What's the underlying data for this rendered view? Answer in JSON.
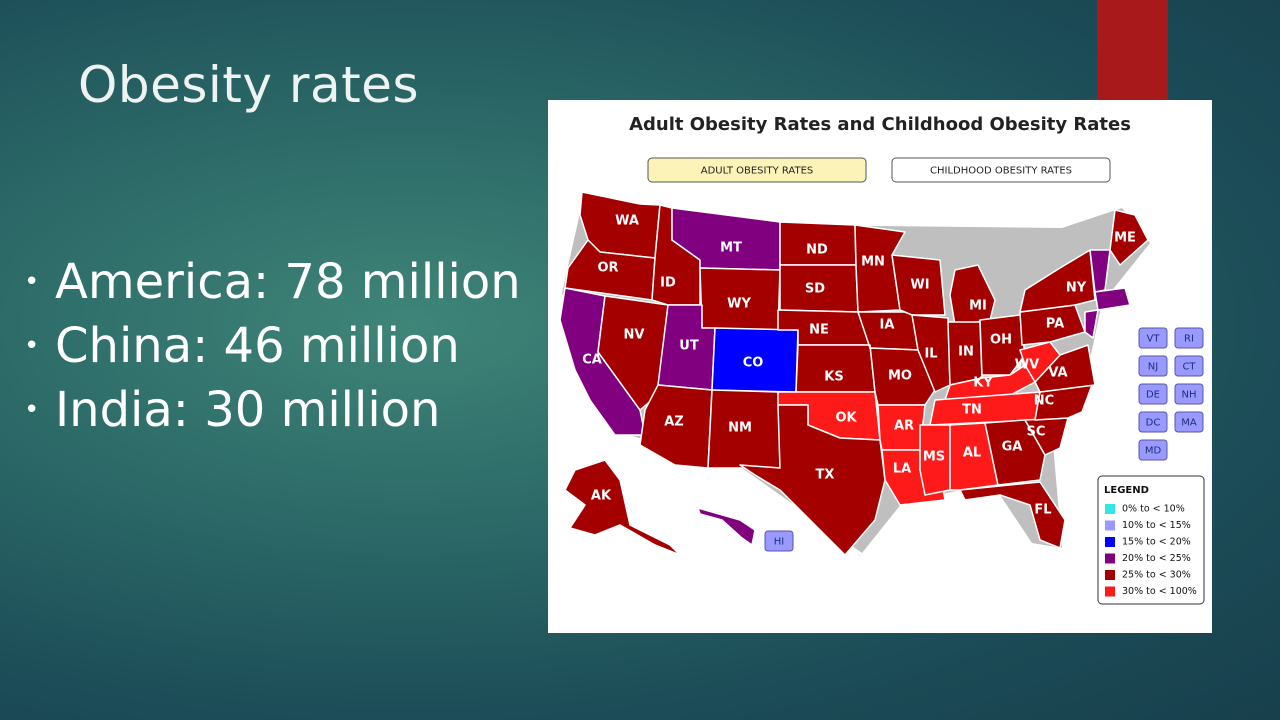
{
  "slide": {
    "title": "Obesity rates",
    "bullets": [
      {
        "text": "America: 78 million"
      },
      {
        "text": "China: 46 million"
      },
      {
        "text": "India: 30 million"
      }
    ],
    "accent_color": "#a8191b"
  },
  "map": {
    "title": "Adult Obesity Rates and Childhood Obesity Rates",
    "tabs": [
      {
        "label": "ADULT OBESITY RATES",
        "active": true
      },
      {
        "label": "CHILDHOOD OBESITY RATES",
        "active": false
      }
    ],
    "legend": {
      "title": "LEGEND",
      "items": [
        {
          "label": "0% to < 10%",
          "color": "#33e6e6"
        },
        {
          "label": "10% to < 15%",
          "color": "#9999ff"
        },
        {
          "label": "15% to < 20%",
          "color": "#0000ff"
        },
        {
          "label": "20% to < 25%",
          "color": "#800080"
        },
        {
          "label": "25% to < 30%",
          "color": "#a50000"
        },
        {
          "label": "30% to < 100%",
          "color": "#ff1a1a"
        }
      ]
    },
    "states": [
      {
        "abbr": "WA",
        "category": "25% to < 30%"
      },
      {
        "abbr": "OR",
        "category": "25% to < 30%"
      },
      {
        "abbr": "CA",
        "category": "20% to < 25%"
      },
      {
        "abbr": "NV",
        "category": "25% to < 30%"
      },
      {
        "abbr": "ID",
        "category": "25% to < 30%"
      },
      {
        "abbr": "MT",
        "category": "20% to < 25%"
      },
      {
        "abbr": "WY",
        "category": "25% to < 30%"
      },
      {
        "abbr": "UT",
        "category": "20% to < 25%"
      },
      {
        "abbr": "CO",
        "category": "15% to < 20%"
      },
      {
        "abbr": "AZ",
        "category": "25% to < 30%"
      },
      {
        "abbr": "NM",
        "category": "25% to < 30%"
      },
      {
        "abbr": "ND",
        "category": "25% to < 30%"
      },
      {
        "abbr": "SD",
        "category": "25% to < 30%"
      },
      {
        "abbr": "NE",
        "category": "25% to < 30%"
      },
      {
        "abbr": "KS",
        "category": "25% to < 30%"
      },
      {
        "abbr": "OK",
        "category": "30% to < 100%"
      },
      {
        "abbr": "TX",
        "category": "25% to < 30%"
      },
      {
        "abbr": "MN",
        "category": "25% to < 30%"
      },
      {
        "abbr": "IA",
        "category": "25% to < 30%"
      },
      {
        "abbr": "MO",
        "category": "25% to < 30%"
      },
      {
        "abbr": "AR",
        "category": "30% to < 100%"
      },
      {
        "abbr": "LA",
        "category": "30% to < 100%"
      },
      {
        "abbr": "WI",
        "category": "25% to < 30%"
      },
      {
        "abbr": "IL",
        "category": "25% to < 30%"
      },
      {
        "abbr": "MI",
        "category": "25% to < 30%"
      },
      {
        "abbr": "IN",
        "category": "25% to < 30%"
      },
      {
        "abbr": "OH",
        "category": "25% to < 30%"
      },
      {
        "abbr": "KY",
        "category": "30% to < 100%"
      },
      {
        "abbr": "TN",
        "category": "30% to < 100%"
      },
      {
        "abbr": "MS",
        "category": "30% to < 100%"
      },
      {
        "abbr": "AL",
        "category": "30% to < 100%"
      },
      {
        "abbr": "GA",
        "category": "25% to < 30%"
      },
      {
        "abbr": "FL",
        "category": "25% to < 30%"
      },
      {
        "abbr": "SC",
        "category": "25% to < 30%"
      },
      {
        "abbr": "NC",
        "category": "25% to < 30%"
      },
      {
        "abbr": "VA",
        "category": "25% to < 30%"
      },
      {
        "abbr": "WV",
        "category": "30% to < 100%"
      },
      {
        "abbr": "PA",
        "category": "25% to < 30%"
      },
      {
        "abbr": "NY",
        "category": "25% to < 30%"
      },
      {
        "abbr": "ME",
        "category": "25% to < 30%"
      },
      {
        "abbr": "AK",
        "category": "25% to < 30%"
      },
      {
        "abbr": "HI",
        "category": "20% to < 25%"
      }
    ],
    "small_state_buttons": [
      {
        "label": "VT"
      },
      {
        "label": "RI"
      },
      {
        "label": "NJ"
      },
      {
        "label": "CT"
      },
      {
        "label": "DE"
      },
      {
        "label": "NH"
      },
      {
        "label": "DC"
      },
      {
        "label": "MA"
      },
      {
        "label": "MD"
      }
    ],
    "hi_button": {
      "label": "HI"
    }
  }
}
